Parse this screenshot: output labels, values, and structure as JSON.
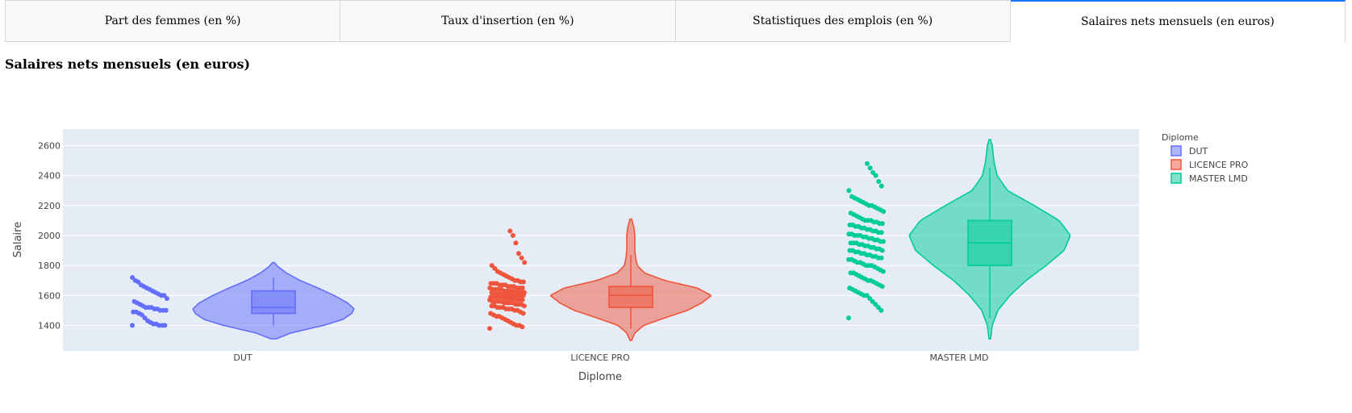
{
  "tabs": [
    {
      "label": "Part des femmes (en %)",
      "active": false
    },
    {
      "label": "Taux d'insertion (en %)",
      "active": false
    },
    {
      "label": "Statistiques des emplois (en %)",
      "active": false
    },
    {
      "label": "Salaires nets mensuels (en euros)",
      "active": true
    }
  ],
  "page_title": "Salaires nets mensuels (en euros)",
  "chart_data": {
    "type": "violin",
    "xlabel": "Diplome",
    "ylabel": "Salaire",
    "ylim": [
      1230,
      2710
    ],
    "yticks": [
      1400,
      1600,
      1800,
      2000,
      2200,
      2400,
      2600
    ],
    "grid": true,
    "legend": {
      "title": "Diplome",
      "placement": "right"
    },
    "categories": [
      "DUT",
      "LICENCE PRO",
      "MASTER LMD"
    ],
    "series": [
      {
        "name": "DUT",
        "color": "#636EFA",
        "box": {
          "min": 1400,
          "q1": 1480,
          "median": 1520,
          "q3": 1630,
          "max": 1720
        },
        "violin_range": [
          1310,
          1820
        ],
        "density": [
          [
            1310,
            0.03
          ],
          [
            1350,
            0.22
          ],
          [
            1400,
            0.62
          ],
          [
            1440,
            0.86
          ],
          [
            1480,
            0.97
          ],
          [
            1510,
            1.0
          ],
          [
            1550,
            0.92
          ],
          [
            1600,
            0.75
          ],
          [
            1650,
            0.55
          ],
          [
            1700,
            0.33
          ],
          [
            1750,
            0.16
          ],
          [
            1790,
            0.06
          ],
          [
            1820,
            0.01
          ]
        ],
        "points": [
          1400,
          1400,
          1400,
          1400,
          1410,
          1410,
          1420,
          1430,
          1450,
          1470,
          1480,
          1490,
          1490,
          1500,
          1500,
          1500,
          1510,
          1510,
          1520,
          1520,
          1520,
          1530,
          1540,
          1550,
          1560,
          1580,
          1600,
          1600,
          1610,
          1620,
          1630,
          1640,
          1650,
          1660,
          1670,
          1690,
          1700,
          1720
        ]
      },
      {
        "name": "LICENCE PRO",
        "color": "#EF553B",
        "box": {
          "min": 1380,
          "q1": 1520,
          "median": 1600,
          "q3": 1660,
          "max": 1870
        },
        "violin_range": [
          1300,
          2110
        ],
        "density": [
          [
            1300,
            0.01
          ],
          [
            1350,
            0.05
          ],
          [
            1400,
            0.16
          ],
          [
            1450,
            0.42
          ],
          [
            1500,
            0.7
          ],
          [
            1550,
            0.88
          ],
          [
            1600,
            1.0
          ],
          [
            1650,
            0.82
          ],
          [
            1700,
            0.42
          ],
          [
            1750,
            0.17
          ],
          [
            1800,
            0.08
          ],
          [
            1850,
            0.06
          ],
          [
            1900,
            0.05
          ],
          [
            1950,
            0.05
          ],
          [
            2000,
            0.05
          ],
          [
            2050,
            0.04
          ],
          [
            2110,
            0.01
          ]
        ],
        "points": [
          1380,
          1390,
          1400,
          1400,
          1410,
          1420,
          1430,
          1440,
          1450,
          1460,
          1460,
          1470,
          1480,
          1480,
          1490,
          1500,
          1500,
          1510,
          1510,
          1510,
          1520,
          1520,
          1520,
          1530,
          1530,
          1530,
          1540,
          1540,
          1540,
          1550,
          1550,
          1550,
          1550,
          1560,
          1560,
          1560,
          1560,
          1570,
          1570,
          1570,
          1570,
          1580,
          1580,
          1580,
          1580,
          1590,
          1590,
          1590,
          1590,
          1590,
          1600,
          1600,
          1600,
          1600,
          1600,
          1600,
          1610,
          1610,
          1610,
          1610,
          1610,
          1620,
          1620,
          1620,
          1620,
          1620,
          1630,
          1630,
          1630,
          1630,
          1640,
          1640,
          1640,
          1640,
          1650,
          1650,
          1650,
          1650,
          1660,
          1660,
          1660,
          1670,
          1670,
          1670,
          1680,
          1680,
          1680,
          1690,
          1690,
          1700,
          1700,
          1710,
          1720,
          1730,
          1740,
          1750,
          1760,
          1780,
          1800,
          1820,
          1850,
          1880,
          1950,
          2000,
          2030
        ]
      },
      {
        "name": "MASTER LMD",
        "color": "#00CC96",
        "box": {
          "min": 1450,
          "q1": 1800,
          "median": 1950,
          "q3": 2100,
          "max": 2450
        },
        "violin_range": [
          1310,
          2640
        ],
        "density": [
          [
            1310,
            0.01
          ],
          [
            1400,
            0.03
          ],
          [
            1500,
            0.1
          ],
          [
            1600,
            0.25
          ],
          [
            1700,
            0.45
          ],
          [
            1800,
            0.7
          ],
          [
            1900,
            0.92
          ],
          [
            2000,
            1.0
          ],
          [
            2100,
            0.86
          ],
          [
            2200,
            0.55
          ],
          [
            2300,
            0.22
          ],
          [
            2400,
            0.09
          ],
          [
            2500,
            0.05
          ],
          [
            2600,
            0.03
          ],
          [
            2640,
            0.01
          ]
        ],
        "points": [
          1450,
          1500,
          1520,
          1540,
          1560,
          1580,
          1600,
          1600,
          1610,
          1620,
          1630,
          1640,
          1650,
          1660,
          1670,
          1680,
          1690,
          1700,
          1700,
          1710,
          1720,
          1730,
          1740,
          1750,
          1750,
          1760,
          1770,
          1780,
          1790,
          1800,
          1800,
          1800,
          1810,
          1820,
          1820,
          1830,
          1840,
          1840,
          1850,
          1850,
          1860,
          1860,
          1870,
          1870,
          1880,
          1880,
          1890,
          1890,
          1900,
          1900,
          1900,
          1910,
          1910,
          1920,
          1920,
          1930,
          1930,
          1940,
          1940,
          1950,
          1950,
          1950,
          1960,
          1960,
          1970,
          1970,
          1980,
          1980,
          1990,
          1990,
          2000,
          2000,
          2000,
          2010,
          2010,
          2020,
          2020,
          2030,
          2030,
          2040,
          2040,
          2050,
          2050,
          2060,
          2060,
          2070,
          2070,
          2080,
          2080,
          2090,
          2090,
          2100,
          2100,
          2100,
          2110,
          2120,
          2130,
          2140,
          2150,
          2160,
          2170,
          2180,
          2190,
          2200,
          2200,
          2210,
          2220,
          2230,
          2240,
          2250,
          2260,
          2300,
          2330,
          2360,
          2400,
          2420,
          2450,
          2480
        ]
      }
    ]
  }
}
